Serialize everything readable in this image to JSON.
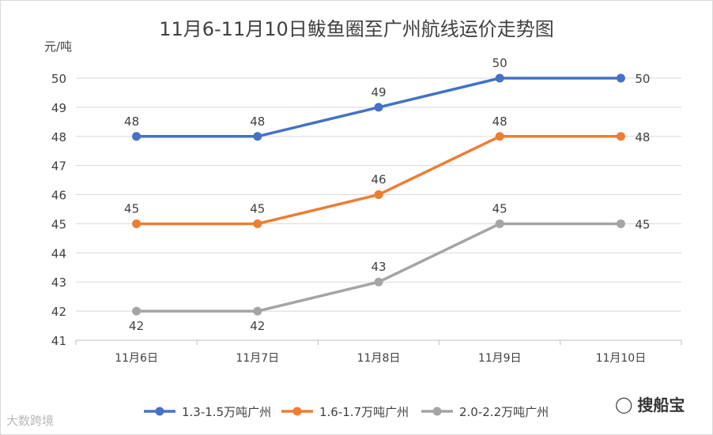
{
  "chart_data": {
    "type": "line",
    "title": "11月6-11月10日鲅鱼圈至广州航线运价走势图",
    "ylabel": "元/吨",
    "xlabel": "",
    "categories": [
      "11月6日",
      "11月7日",
      "11月8日",
      "11月9日",
      "11月10日"
    ],
    "ylim": [
      41,
      50
    ],
    "yticks": [
      41,
      42,
      43,
      44,
      45,
      46,
      47,
      48,
      49,
      50
    ],
    "grid": true,
    "legend": "bottom",
    "series": [
      {
        "name": "1.3-1.5万吨广州",
        "values": [
          48,
          48,
          49,
          50,
          50
        ],
        "color": "#4472C4"
      },
      {
        "name": "1.6-1.7万吨广州",
        "values": [
          45,
          45,
          46,
          48,
          48
        ],
        "color": "#ED7D31"
      },
      {
        "name": "2.0-2.2万吨广州",
        "values": [
          42,
          42,
          43,
          45,
          45
        ],
        "color": "#A5A5A5"
      }
    ]
  },
  "watermarks": {
    "left": "大数跨境",
    "right": "搜船宝",
    "right_icon": "wechat-icon"
  }
}
